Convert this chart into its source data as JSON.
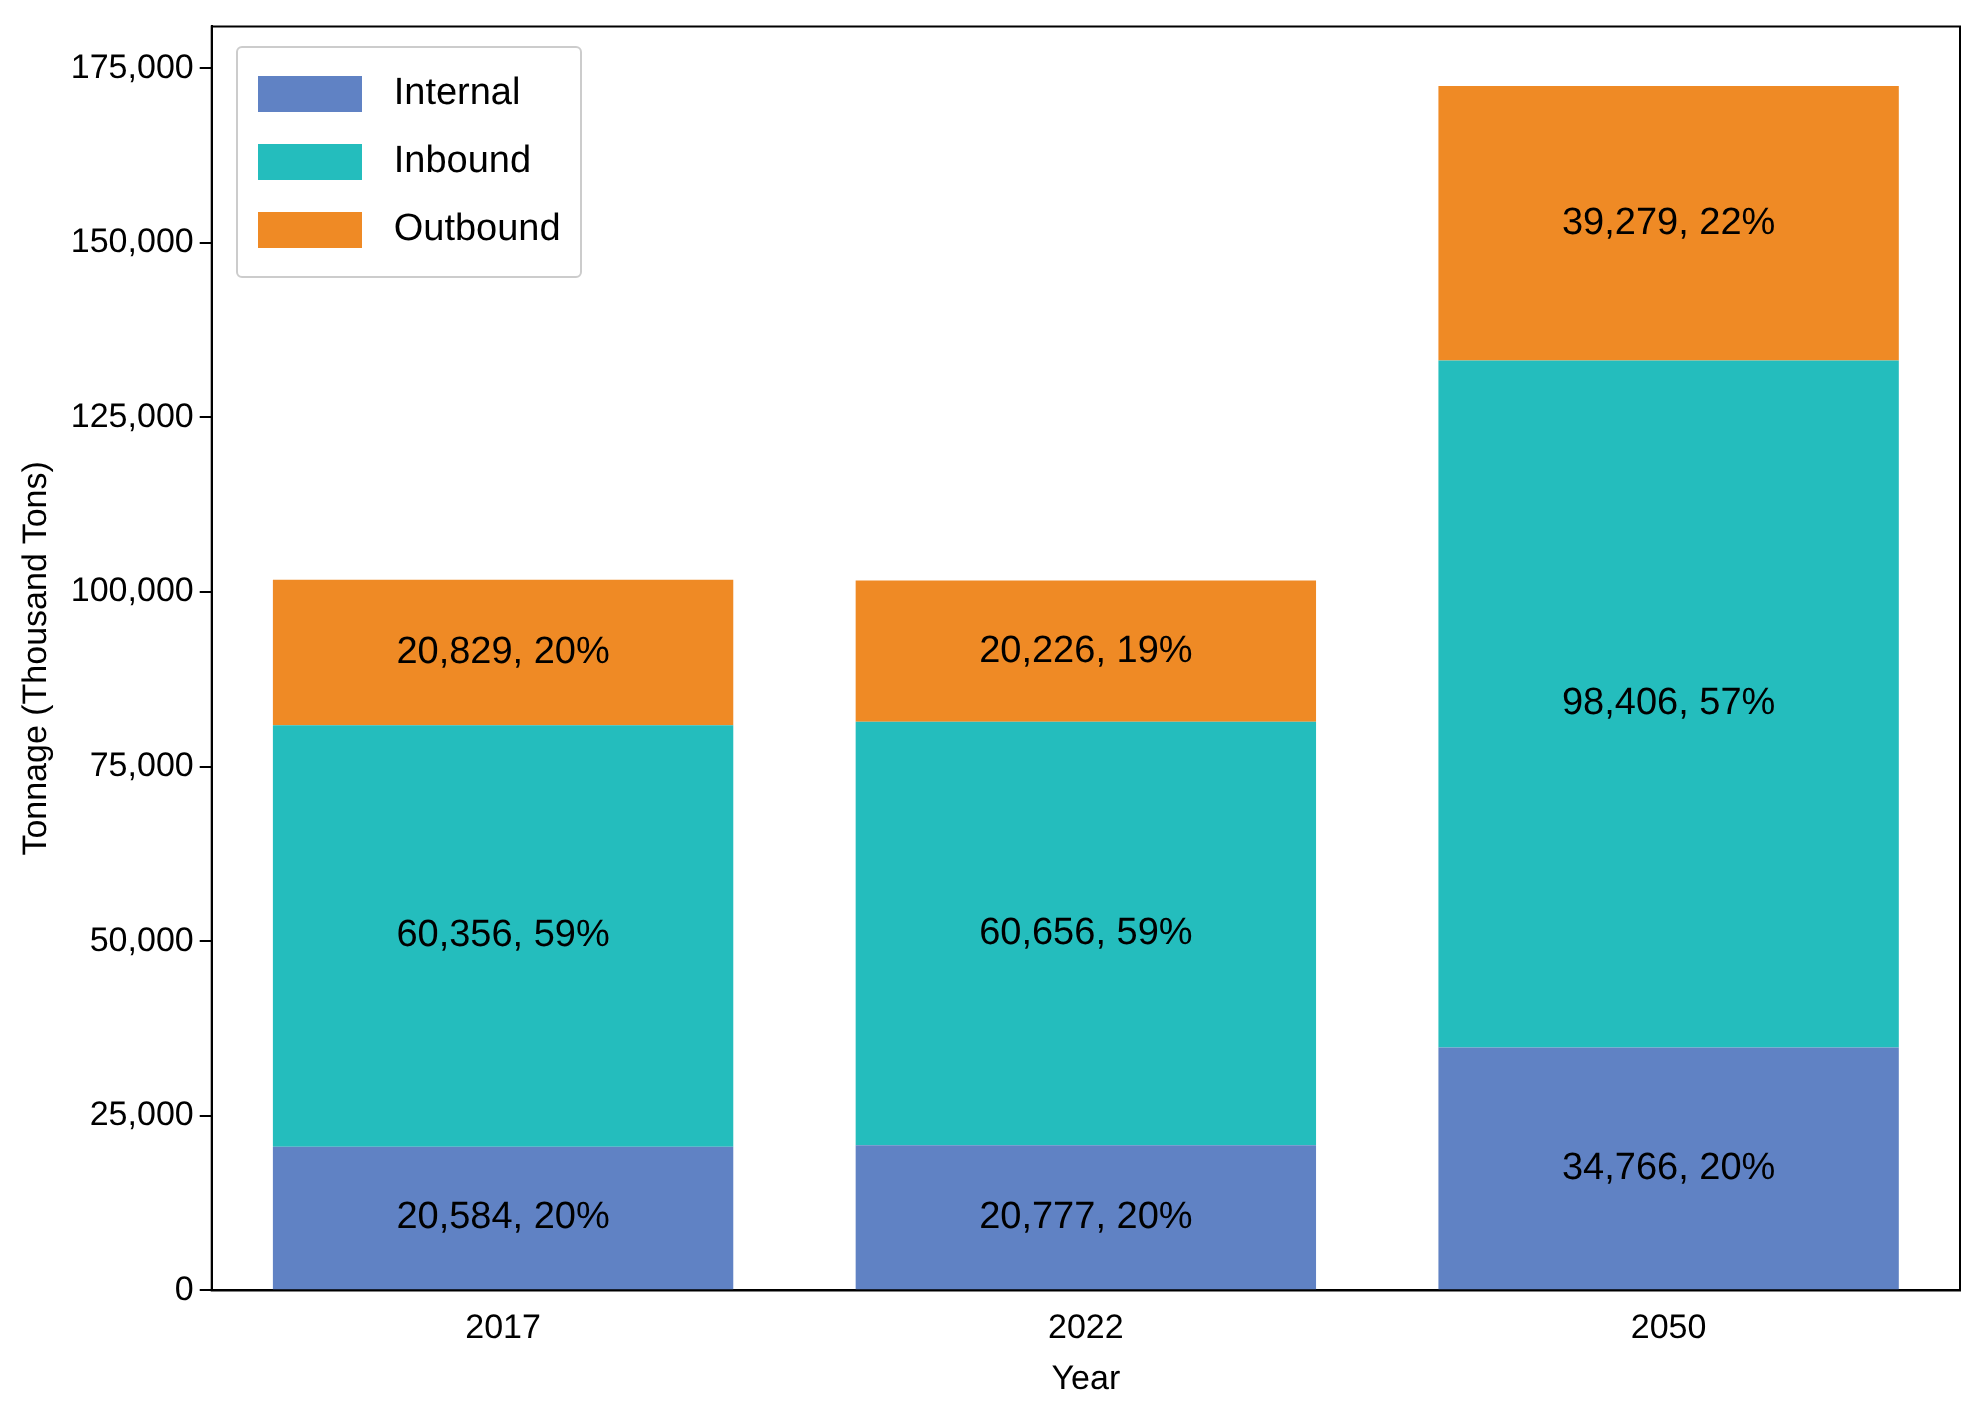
{
  "chart_data": {
    "type": "bar",
    "stacked": true,
    "xlabel": "Year",
    "ylabel": "Tonnage (Thousand Tons)",
    "categories": [
      "2017",
      "2022",
      "2050"
    ],
    "series": [
      {
        "name": "Internal",
        "color": "#6082c4",
        "values": [
          20584,
          20777,
          34766
        ],
        "value_labels": [
          "20,584, 20%",
          "20,777, 20%",
          "34,766, 20%"
        ]
      },
      {
        "name": "Inbound",
        "color": "#24bdbd",
        "values": [
          60356,
          60656,
          98406
        ],
        "value_labels": [
          "60,356, 59%",
          "60,656, 59%",
          "98,406, 57%"
        ]
      },
      {
        "name": "Outbound",
        "color": "#ef8a25",
        "values": [
          20829,
          20226,
          39279
        ],
        "value_labels": [
          "20,829, 20%",
          "20,226, 19%",
          "39,279, 22%"
        ]
      }
    ],
    "ylim": [
      0,
      181000
    ],
    "yticks": [
      {
        "value": 0,
        "label": "0"
      },
      {
        "value": 25000,
        "label": "25,000"
      },
      {
        "value": 50000,
        "label": "50,000"
      },
      {
        "value": 75000,
        "label": "75,000"
      },
      {
        "value": 100000,
        "label": "100,000"
      },
      {
        "value": 125000,
        "label": "125,000"
      },
      {
        "value": 150000,
        "label": "150,000"
      },
      {
        "value": 175000,
        "label": "175,000"
      }
    ],
    "grid": false,
    "legend": "top left"
  }
}
